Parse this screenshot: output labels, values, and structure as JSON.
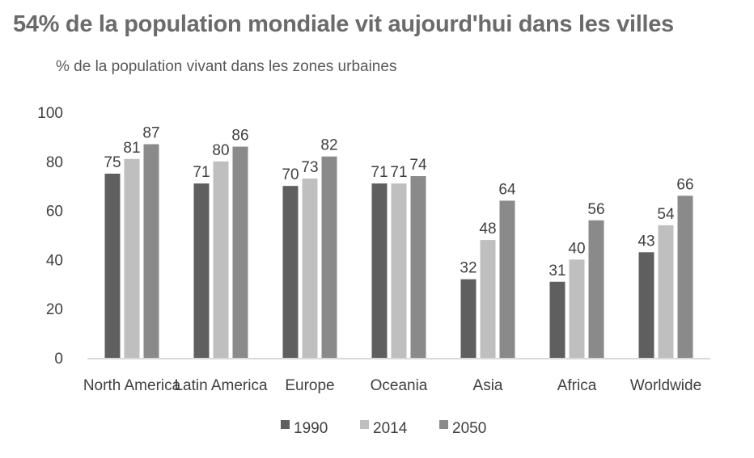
{
  "chart_data": {
    "type": "bar",
    "title": "54% de la population mondiale vit aujourd'hui dans les villes",
    "subtitle": "% de la population vivant dans les zones urbaines",
    "xlabel": "",
    "ylabel": "",
    "ylim": [
      0,
      100
    ],
    "yticks": [
      0,
      20,
      40,
      60,
      80,
      100
    ],
    "grid": false,
    "legend_position": "bottom",
    "categories": [
      "North America",
      "Latin America",
      "Europe",
      "Oceania",
      "Asia",
      "Africa",
      "Worldwide"
    ],
    "series": [
      {
        "name": "1990",
        "color": "#5f5f5f",
        "values": [
          75,
          71,
          70,
          71,
          32,
          31,
          43
        ]
      },
      {
        "name": "2014",
        "color": "#bfbfbf",
        "values": [
          81,
          80,
          73,
          71,
          48,
          40,
          54
        ]
      },
      {
        "name": "2050",
        "color": "#8a8a8a",
        "values": [
          87,
          86,
          82,
          74,
          64,
          56,
          66
        ]
      }
    ]
  }
}
